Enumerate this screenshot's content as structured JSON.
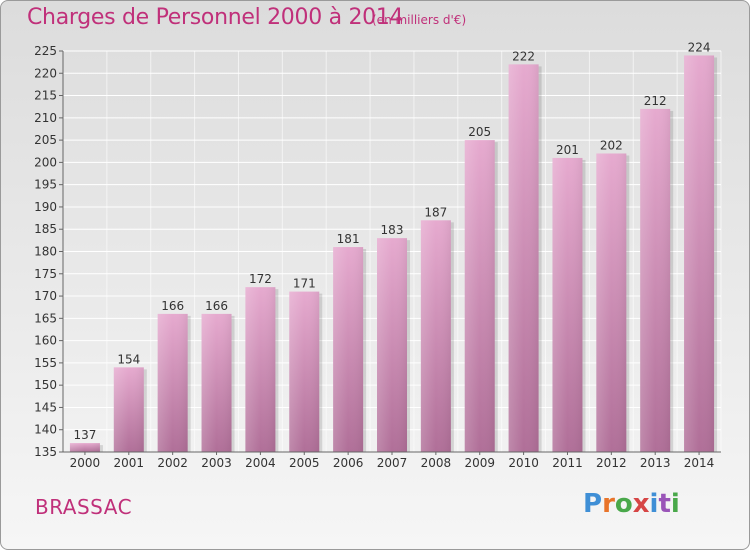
{
  "header": {
    "title": "Charges de Personnel 2000 à 2014",
    "subtitle": "(en milliers d'€)"
  },
  "footer": {
    "commune": "BRASSAC",
    "logo_text": "Proxiti"
  },
  "colors": {
    "accent": "#c0307a",
    "bar_top": "#e6aacf",
    "bar_bottom": "#b06f98",
    "logo_letters": [
      "#3f8fd6",
      "#e8742a",
      "#49a84a",
      "#d64545",
      "#3f8fd6",
      "#9a55b8",
      "#49a84a"
    ]
  },
  "chart_data": {
    "type": "bar",
    "categories": [
      "2000",
      "2001",
      "2002",
      "2003",
      "2004",
      "2005",
      "2006",
      "2007",
      "2008",
      "2009",
      "2010",
      "2011",
      "2012",
      "2013",
      "2014"
    ],
    "values": [
      137,
      154,
      166,
      166,
      172,
      171,
      181,
      183,
      187,
      205,
      222,
      201,
      202,
      212,
      224
    ],
    "ylim": [
      135,
      225
    ],
    "yticks": [
      135,
      140,
      145,
      150,
      155,
      160,
      165,
      170,
      175,
      180,
      185,
      190,
      195,
      200,
      205,
      210,
      215,
      220,
      225
    ],
    "grid": true,
    "xlabel": "",
    "ylabel": ""
  }
}
